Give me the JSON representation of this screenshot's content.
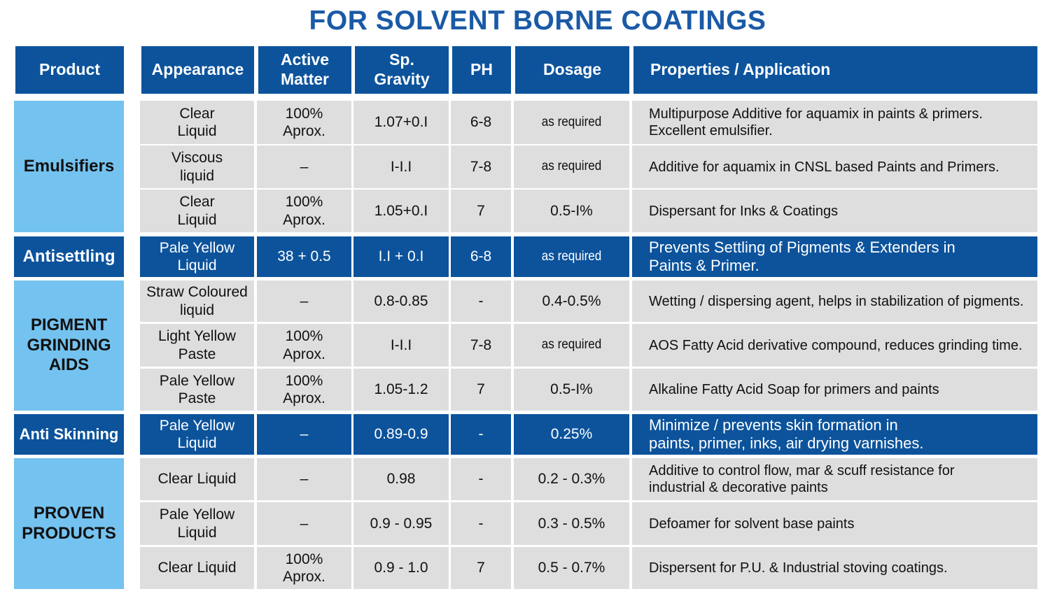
{
  "title": "FOR SOLVENT BORNE COATINGS",
  "colors": {
    "header_blue": "#0c539c",
    "category_light_blue": "#74c2ef",
    "row_grey": "#dedede",
    "title_blue": "#1a5aa6"
  },
  "columns": [
    "Product",
    "Appearance",
    "Active\nMatter",
    "Sp.\nGravity",
    "PH",
    "Dosage",
    "Properties / Application"
  ],
  "groups": [
    {
      "name": "Emulsifiers",
      "highlight": false,
      "rows": [
        {
          "appearance": "Clear\nLiquid",
          "active": "100%\nAprox.",
          "gravity": "1.07+0.I",
          "ph": "6-8",
          "dosage": "as required",
          "properties": "Multipurpose Additive for aquamix in paints & primers.\nExcellent emulsifier."
        },
        {
          "appearance": "Viscous\nliquid",
          "active": "–",
          "gravity": "I-I.I",
          "ph": "7-8",
          "dosage": "as required",
          "properties": "Additive for aquamix in CNSL based Paints and Primers."
        },
        {
          "appearance": "Clear\nLiquid",
          "active": "100%\nAprox.",
          "gravity": "1.05+0.I",
          "ph": "7",
          "dosage": "0.5-I%",
          "properties": "Dispersant for Inks & Coatings"
        }
      ]
    },
    {
      "name": "Antisettling",
      "highlight": true,
      "rows": [
        {
          "appearance": "Pale Yellow\nLiquid",
          "active": "38 + 0.5",
          "gravity": "I.I + 0.I",
          "ph": "6-8",
          "dosage": "as required",
          "properties": "Prevents Settling of Pigments & Extenders in\nPaints & Primer."
        }
      ]
    },
    {
      "name": "PIGMENT\nGRINDING\nAIDS",
      "highlight": false,
      "rows": [
        {
          "appearance": "Straw Coloured\nliquid",
          "active": "–",
          "gravity": "0.8-0.85",
          "ph": "-",
          "dosage": "0.4-0.5%",
          "properties": "Wetting / dispersing agent, helps in stabilization of pigments."
        },
        {
          "appearance": "Light Yellow\nPaste",
          "active": "100%\nAprox.",
          "gravity": "I-I.I",
          "ph": "7-8",
          "dosage": "as required",
          "properties": "AOS Fatty Acid derivative compound, reduces grinding time."
        },
        {
          "appearance": "Pale Yellow\nPaste",
          "active": "100%\nAprox.",
          "gravity": "1.05-1.2",
          "ph": "7",
          "dosage": "0.5-I%",
          "properties": "Alkaline Fatty Acid Soap for primers and paints"
        }
      ]
    },
    {
      "name": "Anti Skinning",
      "highlight": true,
      "rows": [
        {
          "appearance": "Pale Yellow\nLiquid",
          "active": "–",
          "gravity": "0.89-0.9",
          "ph": "-",
          "dosage": "0.25%",
          "properties": "Minimize / prevents skin formation in\npaints, primer, inks, air drying varnishes."
        }
      ]
    },
    {
      "name": "PROVEN\nPRODUCTS",
      "highlight": false,
      "rows": [
        {
          "appearance": "Clear Liquid",
          "active": "–",
          "gravity": "0.98",
          "ph": "-",
          "dosage": "0.2 - 0.3%",
          "properties": "Additive to control flow, mar & scuff resistance for\nindustrial & decorative paints"
        },
        {
          "appearance": "Pale Yellow\nLiquid",
          "active": "–",
          "gravity": "0.9 - 0.95",
          "ph": "-",
          "dosage": "0.3 - 0.5%",
          "properties": "Defoamer for solvent base paints"
        },
        {
          "appearance": "Clear Liquid",
          "active": "100%\nAprox.",
          "gravity": "0.9 - 1.0",
          "ph": "7",
          "dosage": "0.5 - 0.7%",
          "properties": "Dispersent for P.U. & Industrial stoving coatings."
        }
      ]
    }
  ]
}
